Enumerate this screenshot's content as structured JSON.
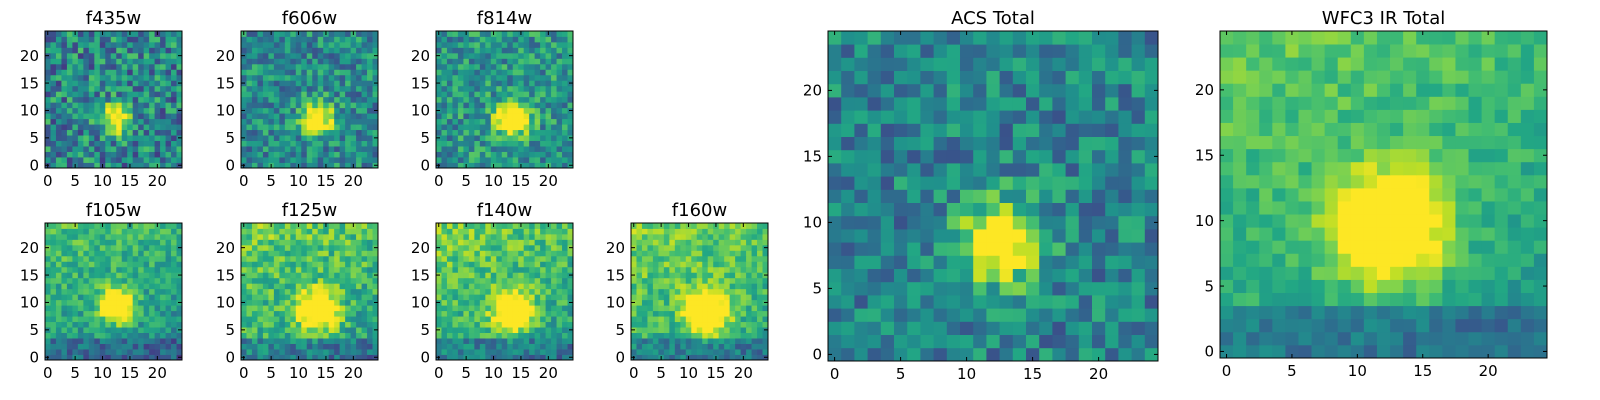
{
  "colormap": "viridis",
  "chart_data": [
    {
      "id": "f435w",
      "type": "heatmap",
      "title": "f435w",
      "grid_size": 25,
      "xticks": [
        "0",
        "5",
        "10",
        "15",
        "20"
      ],
      "yticks": [
        "0",
        "5",
        "10",
        "15",
        "20"
      ],
      "xlim": [
        0,
        25
      ],
      "ylim": [
        0,
        25
      ],
      "source_center": [
        13,
        9
      ],
      "peak_radius": 2.0,
      "noise_level": 0.55,
      "background_level": 0.45,
      "grid": false
    },
    {
      "id": "f606w",
      "type": "heatmap",
      "title": "f606w",
      "grid_size": 25,
      "xticks": [
        "0",
        "5",
        "10",
        "15",
        "20"
      ],
      "yticks": [
        "0",
        "5",
        "10",
        "15",
        "20"
      ],
      "xlim": [
        0,
        25
      ],
      "ylim": [
        0,
        25
      ],
      "source_center": [
        14,
        9
      ],
      "peak_radius": 2.0,
      "noise_level": 0.45,
      "background_level": 0.48,
      "grid": false
    },
    {
      "id": "f814w",
      "type": "heatmap",
      "title": "f814w",
      "grid_size": 25,
      "xticks": [
        "0",
        "5",
        "10",
        "15",
        "20"
      ],
      "yticks": [
        "0",
        "5",
        "10",
        "15",
        "20"
      ],
      "xlim": [
        0,
        25
      ],
      "ylim": [
        0,
        25
      ],
      "source_center": [
        14,
        9
      ],
      "peak_radius": 2.2,
      "noise_level": 0.45,
      "background_level": 0.52,
      "grid": false
    },
    {
      "id": "f105w",
      "type": "heatmap",
      "title": "f105w",
      "grid_size": 25,
      "xticks": [
        "0",
        "5",
        "10",
        "15",
        "20"
      ],
      "yticks": [
        "0",
        "5",
        "10",
        "15",
        "20"
      ],
      "xlim": [
        0,
        25
      ],
      "ylim": [
        0,
        25
      ],
      "source_center": [
        13,
        10
      ],
      "peak_radius": 2.2,
      "noise_level": 0.3,
      "background_level": 0.55,
      "gradient": "ir",
      "grid": false
    },
    {
      "id": "f125w",
      "type": "heatmap",
      "title": "f125w",
      "grid_size": 25,
      "xticks": [
        "0",
        "5",
        "10",
        "15",
        "20"
      ],
      "yticks": [
        "0",
        "5",
        "10",
        "15",
        "20"
      ],
      "xlim": [
        0,
        25
      ],
      "ylim": [
        0,
        25
      ],
      "source_center": [
        14,
        9
      ],
      "peak_radius": 2.5,
      "noise_level": 0.35,
      "background_level": 0.62,
      "gradient": "ir",
      "grid": false
    },
    {
      "id": "f140w",
      "type": "heatmap",
      "title": "f140w",
      "grid_size": 25,
      "xticks": [
        "0",
        "5",
        "10",
        "15",
        "20"
      ],
      "yticks": [
        "0",
        "5",
        "10",
        "15",
        "20"
      ],
      "xlim": [
        0,
        25
      ],
      "ylim": [
        0,
        25
      ],
      "source_center": [
        14,
        9
      ],
      "peak_radius": 2.5,
      "noise_level": 0.32,
      "background_level": 0.62,
      "gradient": "ir",
      "grid": false
    },
    {
      "id": "f160w",
      "type": "heatmap",
      "title": "f160w",
      "grid_size": 25,
      "xticks": [
        "0",
        "5",
        "10",
        "15",
        "20"
      ],
      "yticks": [
        "0",
        "5",
        "10",
        "15",
        "20"
      ],
      "xlim": [
        0,
        25
      ],
      "ylim": [
        0,
        25
      ],
      "source_center": [
        14,
        9
      ],
      "peak_radius": 2.8,
      "noise_level": 0.3,
      "background_level": 0.64,
      "gradient": "ir",
      "grid": false
    },
    {
      "id": "acs_total",
      "type": "heatmap",
      "title": "ACS Total",
      "grid_size": 25,
      "xticks": [
        "0",
        "5",
        "10",
        "15",
        "20"
      ],
      "yticks": [
        "0",
        "5",
        "10",
        "15",
        "20"
      ],
      "xlim": [
        0,
        25
      ],
      "ylim": [
        0,
        25
      ],
      "source_center": [
        13,
        9
      ],
      "peak_radius": 2.2,
      "noise_level": 0.4,
      "background_level": 0.45,
      "grid": false
    },
    {
      "id": "wfc3_ir_total",
      "type": "heatmap",
      "title": "WFC3 IR Total",
      "grid_size": 25,
      "xticks": [
        "0",
        "5",
        "10",
        "15",
        "20"
      ],
      "yticks": [
        "0",
        "5",
        "10",
        "15",
        "20"
      ],
      "xlim": [
        0,
        25
      ],
      "ylim": [
        0,
        25
      ],
      "source_center": [
        13,
        10
      ],
      "peak_radius": 3.0,
      "noise_level": 0.2,
      "background_level": 0.6,
      "gradient": "ir",
      "grid": false
    }
  ]
}
